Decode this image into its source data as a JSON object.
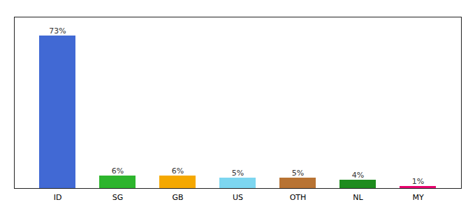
{
  "chart_data": {
    "type": "bar",
    "categories": [
      "ID",
      "SG",
      "GB",
      "US",
      "OTH",
      "NL",
      "MY"
    ],
    "values": [
      73,
      6,
      6,
      5,
      5,
      4,
      1
    ],
    "value_labels": [
      "73%",
      "6%",
      "6%",
      "5%",
      "5%",
      "4%",
      "1%"
    ],
    "colors": [
      "#4169d4",
      "#2db52d",
      "#f5a800",
      "#7dd6f0",
      "#b87333",
      "#1e8c1e",
      "#e8006e"
    ],
    "ylim": [
      0,
      82
    ],
    "data_labels": true,
    "tick_labels": "x",
    "grid": false
  }
}
